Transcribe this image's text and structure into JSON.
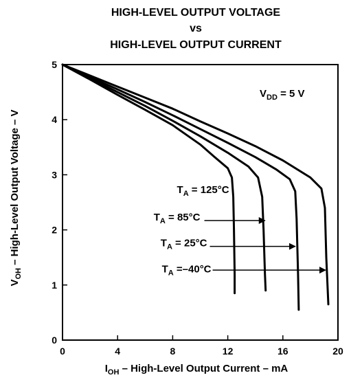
{
  "chart_data": {
    "type": "line",
    "title_lines": [
      "HIGH-LEVEL OUTPUT VOLTAGE",
      "vs",
      "HIGH-LEVEL OUTPUT CURRENT"
    ],
    "xlabel": {
      "main": "I",
      "sub": "OH",
      "rest": " – High-Level Output Current – mA"
    },
    "ylabel": {
      "main": "V",
      "sub": "OH",
      "rest": " – High-Level Output Voltage – V"
    },
    "xlim": [
      0,
      20
    ],
    "ylim": [
      0,
      5
    ],
    "xticks": [
      0,
      4,
      8,
      12,
      16,
      20
    ],
    "yticks": [
      0,
      1,
      2,
      3,
      4,
      5
    ],
    "grid": false,
    "annotation": {
      "main": "V",
      "sub": "DD",
      "rest": " = 5 V"
    },
    "series": [
      {
        "name": "T_A = 125°C",
        "label": {
          "main": "T",
          "sub": "A",
          "rest": " = 125°C"
        },
        "points": [
          [
            0,
            5
          ],
          [
            2,
            4.73
          ],
          [
            4,
            4.45
          ],
          [
            6,
            4.18
          ],
          [
            8,
            3.9
          ],
          [
            10,
            3.55
          ],
          [
            11,
            3.33
          ],
          [
            12,
            3.12
          ],
          [
            12.3,
            2.95
          ],
          [
            12.4,
            2.6
          ],
          [
            12.45,
            2
          ],
          [
            12.5,
            1.2
          ],
          [
            12.5,
            0.85
          ]
        ]
      },
      {
        "name": "T_A = 85°C",
        "label": {
          "main": "T",
          "sub": "A",
          "rest": " = 85°C"
        },
        "points": [
          [
            0,
            5
          ],
          [
            2,
            4.75
          ],
          [
            4,
            4.5
          ],
          [
            6,
            4.25
          ],
          [
            8,
            3.98
          ],
          [
            10,
            3.7
          ],
          [
            12,
            3.4
          ],
          [
            13.5,
            3.15
          ],
          [
            14.2,
            2.95
          ],
          [
            14.5,
            2.6
          ],
          [
            14.6,
            2
          ],
          [
            14.7,
            1.2
          ],
          [
            14.75,
            0.9
          ]
        ]
      },
      {
        "name": "T_A = 25°C",
        "label": {
          "main": "T",
          "sub": "A",
          "rest": " = 25°C"
        },
        "points": [
          [
            0,
            5
          ],
          [
            2,
            4.77
          ],
          [
            4,
            4.55
          ],
          [
            6,
            4.32
          ],
          [
            8,
            4.08
          ],
          [
            10,
            3.83
          ],
          [
            12,
            3.58
          ],
          [
            14,
            3.32
          ],
          [
            15.5,
            3.1
          ],
          [
            16.5,
            2.92
          ],
          [
            16.9,
            2.7
          ],
          [
            17,
            2.2
          ],
          [
            17.1,
            1.2
          ],
          [
            17.15,
            0.55
          ]
        ]
      },
      {
        "name": "T_A = -40°C",
        "label": {
          "main": "T",
          "sub": "A",
          "rest": " =–40°C"
        },
        "points": [
          [
            0,
            5
          ],
          [
            2,
            4.8
          ],
          [
            4,
            4.6
          ],
          [
            6,
            4.4
          ],
          [
            8,
            4.2
          ],
          [
            10,
            3.97
          ],
          [
            12,
            3.75
          ],
          [
            14,
            3.52
          ],
          [
            16,
            3.26
          ],
          [
            18,
            2.95
          ],
          [
            18.8,
            2.75
          ],
          [
            19.05,
            2.4
          ],
          [
            19.15,
            1.5
          ],
          [
            19.3,
            0.65
          ]
        ]
      }
    ],
    "label_arrows": [
      {
        "series": 0,
        "text_xy": [
          12.3,
          2.67
        ],
        "arrow": null
      },
      {
        "series": 1,
        "text_xy": [
          11.2,
          2.17
        ],
        "arrow": [
          [
            10.3,
            2.17
          ],
          [
            14.7,
            2.17
          ]
        ]
      },
      {
        "series": 2,
        "text_xy": [
          10.4,
          1.7
        ],
        "arrow": [
          [
            10.7,
            1.7
          ],
          [
            16.9,
            1.7
          ]
        ]
      },
      {
        "series": 3,
        "text_xy": [
          10.8,
          1.23
        ],
        "arrow": [
          [
            10.9,
            1.27
          ],
          [
            19.1,
            1.27
          ]
        ]
      }
    ]
  }
}
